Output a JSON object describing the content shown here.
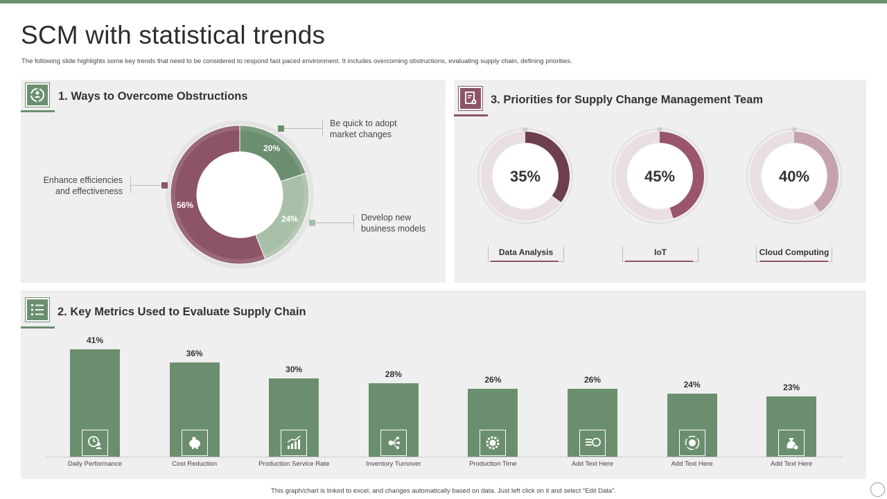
{
  "title": "SCM with statistical trends",
  "subtitle": "The following slide highlights some key trends that need to be considered to respond fast paced environment. It includes overcoming obstructions, evaluating supply chain, defining priorities.",
  "footer": "This graph/chart is linked to excel, and changes automatically based on data. Just left click on it and select “Edit Data”.",
  "colors": {
    "green": "#6b8f6e",
    "light_green": "#a9c0a8",
    "maroon": "#8c5466",
    "dark_maroon": "#6e3e4d",
    "mid_maroon": "#99566a",
    "pink": "#c5a3ad",
    "panel": "#efefef"
  },
  "section1": {
    "title": "1. Ways to Overcome Obstructions",
    "icon": "recycle-people-icon",
    "chart_data": {
      "type": "pie",
      "title": "Ways to Overcome Obstructions",
      "slices": [
        {
          "label": "Be quick to adopt market changes",
          "value": 20,
          "display": "20%",
          "label_line1": "Be quick to adopt",
          "label_line2": "market changes"
        },
        {
          "label": "Develop new business models",
          "value": 24,
          "display": "24%",
          "label_line1": "Develop  new",
          "label_line2": "business models"
        },
        {
          "label": "Enhance efficiencies and effectiveness",
          "value": 56,
          "display": "56%",
          "label_line1": "Enhance efficiencies",
          "label_line2": "and effectiveness"
        }
      ]
    }
  },
  "section3": {
    "title": "3. Priorities for Supply Change Management Team",
    "icon": "document-gear-icon",
    "chart_data": {
      "type": "pie",
      "title": "Priorities for Supply Change Management Team",
      "items": [
        {
          "label": "Data Analysis",
          "value": 35,
          "display": "35%"
        },
        {
          "label": "IoT",
          "value": 45,
          "display": "45%"
        },
        {
          "label": "Cloud Computing",
          "value": 40,
          "display": "40%"
        }
      ]
    }
  },
  "section2": {
    "title": "2. Key Metrics Used to Evaluate Supply Chain",
    "icon": "checklist-icon",
    "chart_data": {
      "type": "bar",
      "title": "Key Metrics Used to Evaluate Supply Chain",
      "categories": [
        "Daily Performance",
        "Cost Reduction",
        "Production Service Rate",
        "Inventory Turnover",
        "Production Time",
        "Add Text Here",
        "Add Text Here",
        "Add Text Here"
      ],
      "values": [
        41,
        36,
        30,
        28,
        26,
        26,
        24,
        23
      ],
      "value_labels": [
        "41%",
        "36%",
        "30%",
        "28%",
        "26%",
        "26%",
        "24%",
        "23%"
      ],
      "icons": [
        "clock-person-icon",
        "piggy-bank-icon",
        "growth-chart-icon",
        "network-icon",
        "gear-dollar-icon",
        "dollar-list-icon",
        "dollar-cycle-icon",
        "money-bag-icon"
      ],
      "ylim": [
        0,
        45
      ]
    }
  }
}
